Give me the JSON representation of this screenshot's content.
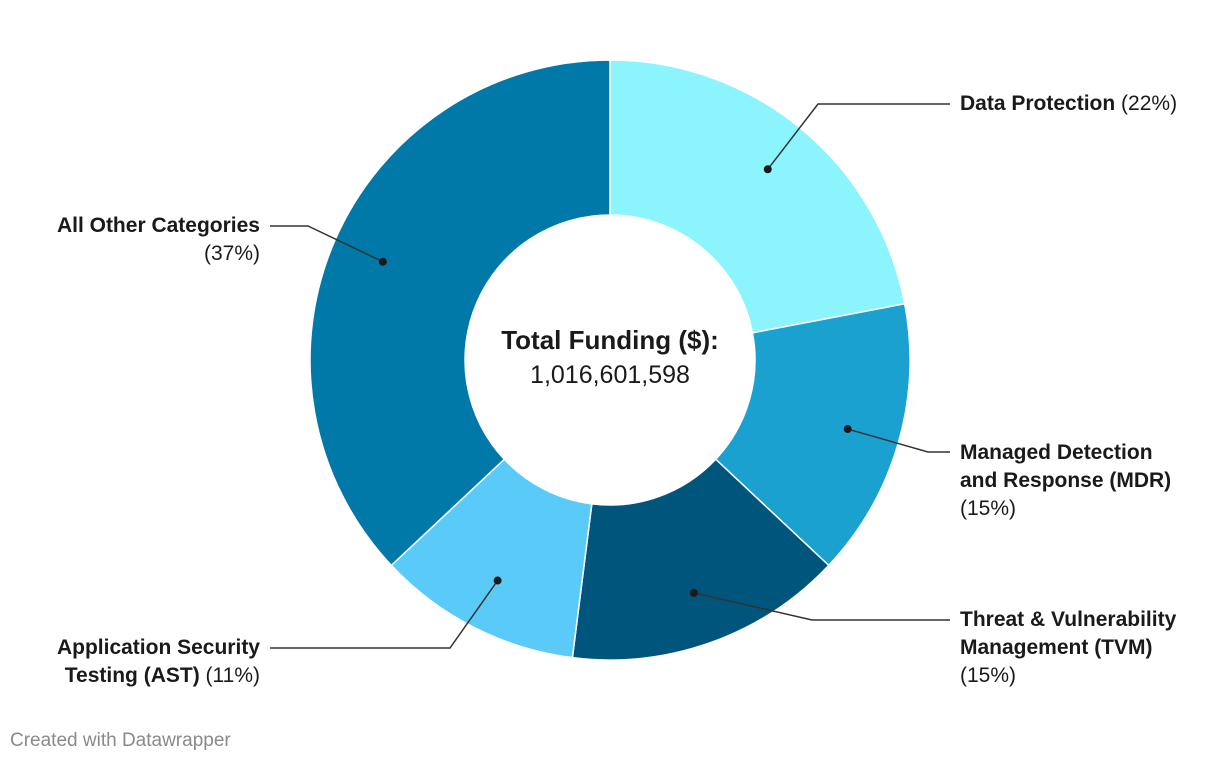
{
  "chart_data": {
    "type": "pie",
    "variant": "donut",
    "title": "",
    "center_label": "Total Funding ($):",
    "center_value": "1,016,601,598",
    "categories": [
      "Data Protection",
      "Managed Detection and Response (MDR)",
      "Threat & Vulnerability Management (TVM)",
      "Application Security Testing (AST)",
      "All Other Categories"
    ],
    "values": [
      22,
      15,
      15,
      11,
      37
    ],
    "value_labels": [
      "(22%)",
      "(15%)",
      "(15%)",
      "(11%)",
      "(37%)"
    ],
    "colors": [
      "#8bf4fd",
      "#1aa1cf",
      "#00557d",
      "#5acaf8",
      "#0079a8"
    ],
    "label_lines": {
      "data_protection": [
        "Data Protection"
      ],
      "mdr": [
        "Managed Detection",
        "and Response (MDR)"
      ],
      "tvm": [
        "Threat & Vulnerability",
        "Management (TVM)"
      ],
      "ast": [
        "Application Security",
        "Testing (AST)"
      ],
      "other": [
        "All Other Categories"
      ]
    },
    "legend": "none"
  },
  "footer": "Created with Datawrapper"
}
